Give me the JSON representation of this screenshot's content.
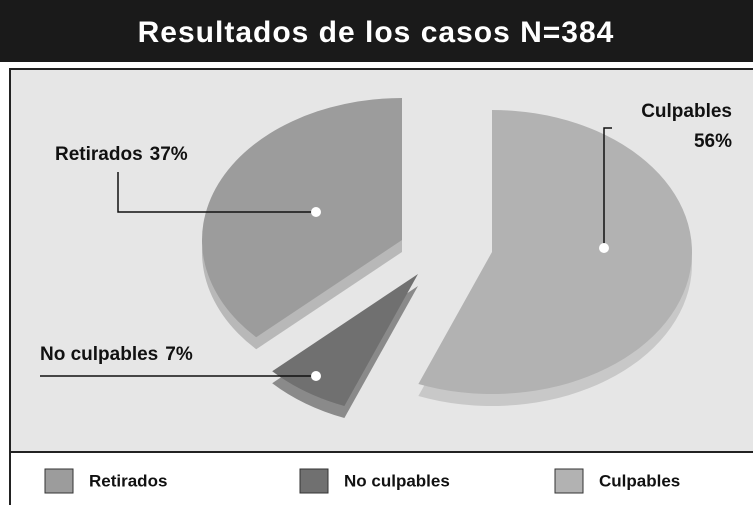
{
  "chart_data": {
    "type": "pie",
    "title": "Resultados de los casos N=384",
    "categories": [
      "Retirados",
      "No culpables",
      "Culpables"
    ],
    "values": [
      37,
      7,
      56
    ],
    "value_labels": [
      "37%",
      "7%",
      "56%"
    ],
    "colors": [
      "#9c9c9c",
      "#707070",
      "#b2b2b2"
    ]
  }
}
